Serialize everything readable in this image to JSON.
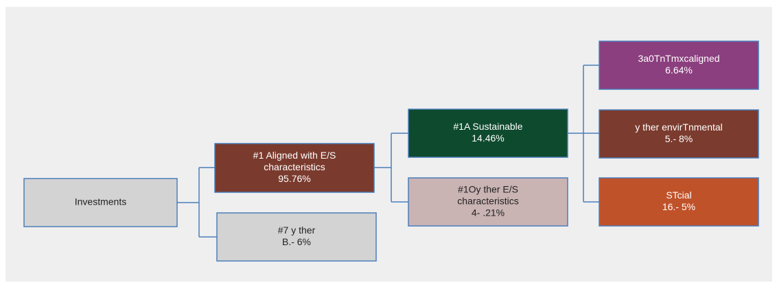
{
  "nodes": [
    {
      "lines": [
        "Investments"
      ]
    },
    {
      "lines": [
        "#1 Aligned with E/S",
        "characteristics",
        "95.76%"
      ]
    },
    {
      "lines": [
        "#7 y ther",
        "B.- 6%"
      ]
    },
    {
      "lines": [
        "#1A Sustainable",
        "14.46%"
      ]
    },
    {
      "lines": [
        "#1Oy ther E/S",
        "characteristics",
        "4- .21%"
      ]
    },
    {
      "lines": [
        "3a0TnTmxcaligned",
        "6.64%"
      ]
    },
    {
      "lines": [
        "y ther envirTnmental",
        "5.- 8%"
      ]
    },
    {
      "lines": [
        "STcial",
        "16.- 5%"
      ]
    }
  ]
}
